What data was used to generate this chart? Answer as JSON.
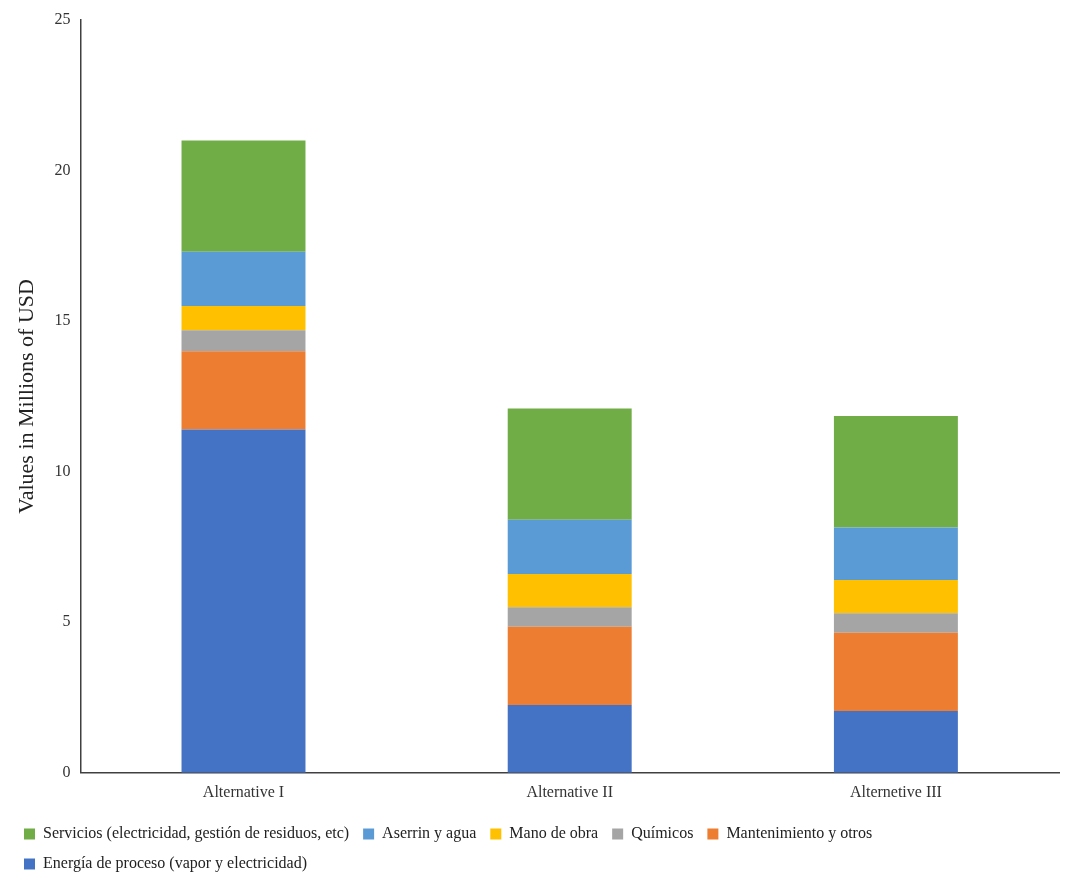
{
  "chart_data": {
    "type": "bar",
    "ylabel": "Values in Millions of USD",
    "categories": [
      "Alternative I",
      "Alternative II",
      "Alternetive III"
    ],
    "stacked": true,
    "ylim": [
      0,
      25
    ],
    "yticks": [
      0,
      5,
      10,
      15,
      20,
      25
    ],
    "grid": false,
    "legend": "bottom",
    "series": [
      {
        "name": "Energía de proceso (vapor y electricidad)",
        "color": "#4472c4",
        "values": [
          11.4,
          2.25,
          2.05
        ]
      },
      {
        "name": "Mantenimiento y otros",
        "color": "#ed7d31",
        "values": [
          2.6,
          2.6,
          2.6
        ]
      },
      {
        "name": "Químicos",
        "color": "#a5a5a5",
        "values": [
          0.7,
          0.65,
          0.65
        ]
      },
      {
        "name": "Mano de obra",
        "color": "#ffc000",
        "values": [
          0.8,
          1.1,
          1.1
        ]
      },
      {
        "name": "Aserrin y agua",
        "color": "#5b9bd5",
        "values": [
          1.8,
          1.8,
          1.75
        ]
      },
      {
        "name": "Servicios (electricidad, gestión de residuos, etc)",
        "color": "#70ad47",
        "values": [
          3.7,
          3.7,
          3.7
        ]
      }
    ]
  }
}
